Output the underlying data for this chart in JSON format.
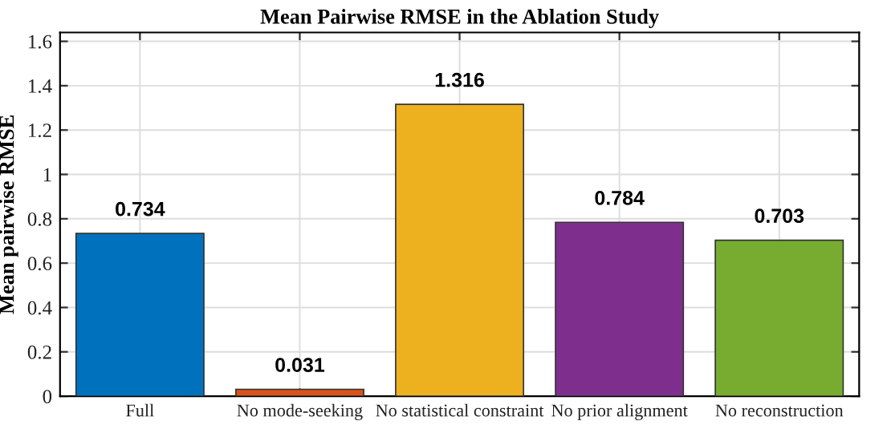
{
  "chart_data": {
    "type": "bar",
    "title": "Mean Pairwise RMSE in the Ablation Study",
    "ylabel": "Mean pairwise RMSE",
    "categories": [
      "Full",
      "No mode-seeking",
      "No statistical constraint",
      "No prior alignment",
      "No reconstruction"
    ],
    "values": [
      0.734,
      0.031,
      1.316,
      0.784,
      0.703
    ],
    "colors": [
      "#0072bd",
      "#d95319",
      "#edb120",
      "#7e2f8e",
      "#77ac30"
    ],
    "data_labels": true,
    "ylim": [
      0,
      1.64
    ],
    "yticks": [
      0,
      0.2,
      0.4,
      0.6,
      0.8,
      1,
      1.2,
      1.4,
      1.6
    ],
    "grid": true
  }
}
